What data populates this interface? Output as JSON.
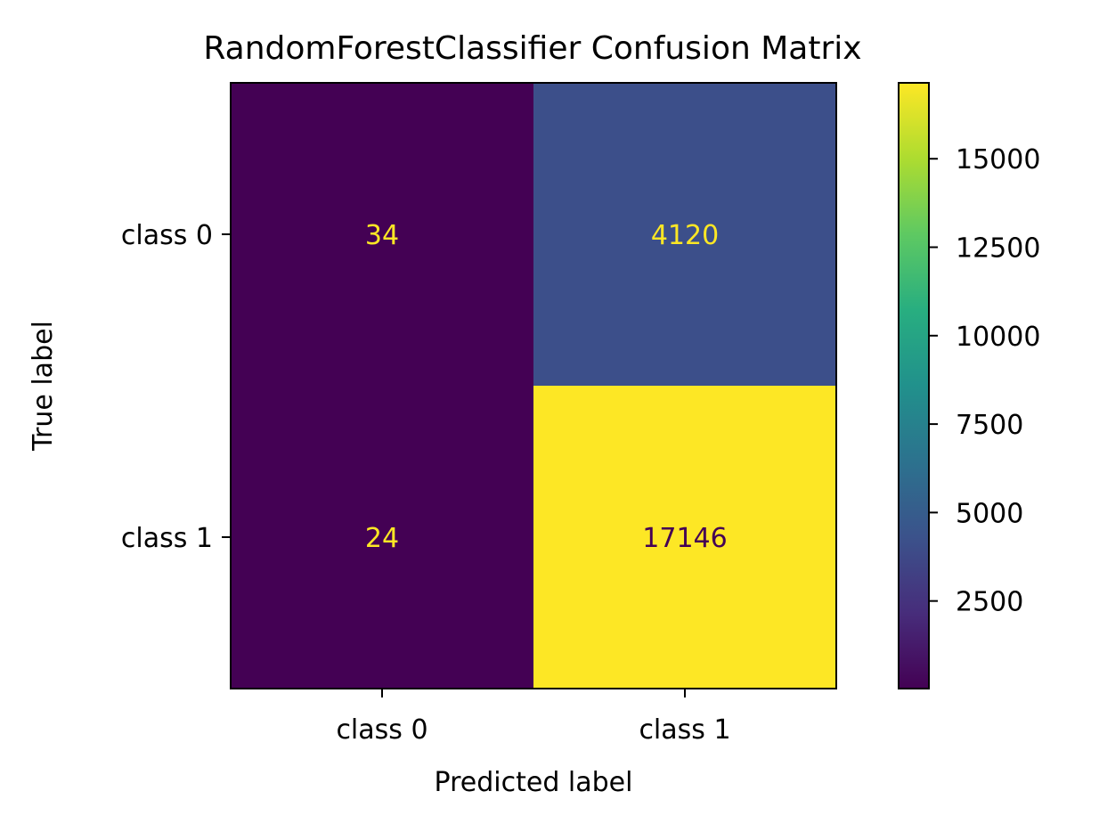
{
  "chart_data": {
    "type": "heatmap",
    "title": "RandomForestClassifier Confusion Matrix",
    "xlabel": "Predicted label",
    "ylabel": "True label",
    "x_categories": [
      "class 0",
      "class 1"
    ],
    "y_categories": [
      "class 0",
      "class 1"
    ],
    "values": [
      [
        34,
        4120
      ],
      [
        24,
        17146
      ]
    ],
    "colormap": "viridis",
    "colorbar": {
      "ticks": [
        2500,
        5000,
        7500,
        10000,
        12500,
        15000
      ],
      "range": [
        24,
        17146
      ]
    },
    "label_colors": {
      "on_dark": "#fde725",
      "on_light": "#440154"
    },
    "grid": false
  }
}
